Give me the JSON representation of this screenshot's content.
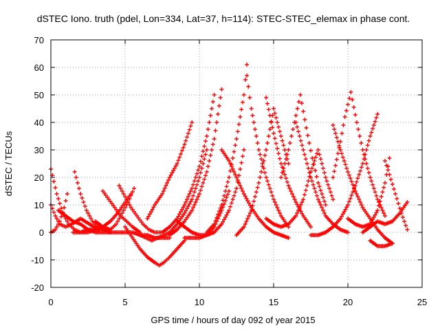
{
  "chart_data": {
    "type": "scatter",
    "title": "dSTEC Iono. truth (pdel, Lon=334, Lat=37, h=114): STEC-STEC_elemax in phase cont.",
    "xlabel": "GPS time / hours of day 092 of year 2015",
    "ylabel": "dSTEC  / TECUs",
    "xlim": [
      0,
      25
    ],
    "ylim": [
      -20,
      70
    ],
    "xticks": [
      0,
      5,
      10,
      15,
      20,
      25
    ],
    "yticks": [
      -20,
      -10,
      0,
      10,
      20,
      30,
      40,
      50,
      60,
      70
    ],
    "x_tick_labels": [
      "0",
      "5",
      "10",
      "15",
      "20",
      "25"
    ],
    "y_tick_labels": [
      "-20",
      "-10",
      "0",
      "10",
      "20",
      "30",
      "40",
      "50",
      "60",
      "70"
    ],
    "grid": true,
    "legend": "none",
    "marker": "plus",
    "color": "#ff0000",
    "series": [
      {
        "x": [
          0.0,
          0.4,
          0.8,
          1.2,
          1.6,
          2.0,
          2.4
        ],
        "y": [
          23,
          14,
          7,
          3,
          1,
          0,
          1
        ]
      },
      {
        "x": [
          0.0,
          0.3,
          0.6,
          0.9,
          1.1
        ],
        "y": [
          0,
          1,
          4,
          9,
          14
        ]
      },
      {
        "x": [
          0.0,
          0.3,
          0.6,
          1.0,
          1.4,
          2.0,
          2.6,
          3.2
        ],
        "y": [
          10,
          6,
          3,
          2,
          3,
          5,
          3,
          1
        ]
      },
      {
        "x": [
          1.6,
          2.0,
          2.4,
          2.8,
          3.2,
          3.6,
          4.0
        ],
        "y": [
          22,
          14,
          8,
          4,
          2,
          1,
          0
        ]
      },
      {
        "x": [
          0.5,
          1.0,
          1.5,
          2.0,
          2.5,
          3.0,
          3.5,
          4.0
        ],
        "y": [
          8,
          6,
          4,
          3,
          1,
          0,
          0,
          0
        ]
      },
      {
        "x": [
          1.5,
          2.0,
          2.5,
          3.0,
          3.5,
          4.0,
          4.5,
          5.0,
          5.4
        ],
        "y": [
          0,
          0,
          0,
          1,
          2,
          4,
          7,
          11,
          14
        ]
      },
      {
        "x": [
          3.5,
          3.9,
          4.3,
          4.7,
          5.1,
          5.5,
          6.0
        ],
        "y": [
          15,
          12,
          9,
          6,
          4,
          2,
          0
        ]
      },
      {
        "x": [
          3.0,
          3.5,
          4.0,
          4.4,
          4.8,
          5.2,
          5.6
        ],
        "y": [
          4,
          2,
          1,
          3,
          7,
          11,
          16
        ]
      },
      {
        "x": [
          4.6,
          5.0,
          5.4,
          5.8,
          6.2,
          6.6,
          7.0,
          7.4
        ],
        "y": [
          17,
          13,
          9,
          6,
          3,
          1,
          0,
          0
        ]
      },
      {
        "x": [
          2.5,
          3.0,
          3.5,
          4.0,
          4.5,
          5.0,
          5.5,
          6.0,
          6.5,
          7.0,
          7.5,
          8.0
        ],
        "y": [
          1,
          1,
          1,
          0,
          0,
          0,
          0,
          -1,
          -1,
          -2,
          -2,
          -2
        ]
      },
      {
        "x": [
          5.0,
          5.5,
          6.0,
          6.5,
          7.0,
          7.3,
          7.6,
          8.0,
          8.5,
          9.0
        ],
        "y": [
          2,
          -2,
          -6,
          -9,
          -11,
          -12,
          -11,
          -9,
          -6,
          -3
        ]
      },
      {
        "x": [
          6.0,
          6.4,
          6.8,
          7.2,
          7.6,
          8.0,
          8.5,
          9.0,
          9.5,
          10.0,
          10.5
        ],
        "y": [
          -1,
          -2,
          -3,
          -2,
          -1,
          0,
          3,
          7,
          12,
          20,
          30
        ]
      },
      {
        "x": [
          6.5,
          7.0,
          7.5,
          8.0,
          8.5,
          9.0,
          9.5
        ],
        "y": [
          5,
          10,
          14,
          20,
          25,
          32,
          40
        ]
      },
      {
        "x": [
          7.5,
          8.0,
          8.5,
          9.0,
          9.5,
          10.0,
          10.5,
          11.0
        ],
        "y": [
          0,
          2,
          5,
          10,
          16,
          24,
          35,
          50
        ]
      },
      {
        "x": [
          8.0,
          8.5,
          9.0,
          9.5,
          10.0,
          10.5,
          11.0,
          11.5
        ],
        "y": [
          -1,
          1,
          4,
          8,
          14,
          22,
          34,
          52
        ]
      },
      {
        "x": [
          9.0,
          9.5,
          10.0,
          10.5,
          11.0,
          11.5,
          12.0
        ],
        "y": [
          -2,
          -2,
          -2,
          -1,
          2,
          8,
          15
        ]
      },
      {
        "x": [
          8.5,
          9.0,
          9.5,
          10.0,
          10.5,
          11.0,
          11.5,
          12.0,
          12.5,
          13.0
        ],
        "y": [
          4,
          2,
          0,
          -1,
          -1,
          0,
          3,
          8,
          16,
          30
        ]
      },
      {
        "x": [
          11.5,
          12.0,
          12.5,
          13.0,
          13.5,
          14.0,
          14.5,
          15.0,
          15.5,
          16.0
        ],
        "y": [
          30,
          26,
          20,
          14,
          9,
          5,
          2,
          0,
          -1,
          -2
        ]
      },
      {
        "x": [
          10.5,
          11.0,
          11.5,
          12.0,
          12.5,
          13.0,
          13.2
        ],
        "y": [
          0,
          3,
          10,
          20,
          34,
          50,
          61
        ]
      },
      {
        "x": [
          13.2,
          13.5,
          14.0,
          14.5,
          15.0,
          15.5,
          16.0
        ],
        "y": [
          57,
          45,
          30,
          20,
          12,
          6,
          2
        ]
      },
      {
        "x": [
          12.5,
          13.0,
          13.5,
          14.0,
          14.5,
          15.0,
          15.5,
          16.0
        ],
        "y": [
          -1,
          2,
          8,
          18,
          30,
          45,
          35,
          25
        ]
      },
      {
        "x": [
          14.5,
          15.0,
          15.5,
          16.0,
          16.5,
          17.0,
          17.5
        ],
        "y": [
          49,
          36,
          25,
          17,
          11,
          6,
          2
        ]
      },
      {
        "x": [
          15.5,
          16.0,
          16.4,
          16.8,
          17.2,
          17.6,
          18.0,
          18.5
        ],
        "y": [
          20,
          30,
          40,
          50,
          38,
          27,
          18,
          10
        ]
      },
      {
        "x": [
          16.5,
          17.0,
          17.5,
          18.0,
          18.5,
          19.0,
          19.5,
          20.0
        ],
        "y": [
          40,
          30,
          20,
          12,
          6,
          3,
          1,
          0
        ]
      },
      {
        "x": [
          14.5,
          15.0,
          15.5,
          16.0,
          16.5,
          17.0,
          17.5,
          18.0,
          18.5,
          19.0
        ],
        "y": [
          5,
          3,
          2,
          3,
          6,
          12,
          22,
          30,
          20,
          12
        ]
      },
      {
        "x": [
          17.5,
          18.0,
          18.5,
          19.0,
          19.5,
          20.0,
          20.5,
          21.0,
          21.5,
          22.0
        ],
        "y": [
          -1,
          -1,
          0,
          2,
          5,
          10,
          17,
          25,
          35,
          43
        ]
      },
      {
        "x": [
          19.0,
          19.5,
          19.8,
          20.2,
          20.6,
          21.0,
          21.5,
          22.0,
          22.5
        ],
        "y": [
          20,
          33,
          42,
          51,
          40,
          30,
          20,
          12,
          6
        ]
      },
      {
        "x": [
          19.0,
          19.5,
          20.0,
          20.5,
          21.0,
          21.5,
          22.0,
          22.5,
          23.0
        ],
        "y": [
          39,
          30,
          22,
          15,
          9,
          5,
          1,
          -2,
          -4
        ]
      },
      {
        "x": [
          20.0,
          20.5,
          21.0,
          21.5,
          22.0,
          22.5,
          22.8
        ],
        "y": [
          5,
          3,
          2,
          3,
          8,
          18,
          27
        ]
      },
      {
        "x": [
          22.5,
          22.8,
          23.2,
          23.6,
          24.0
        ],
        "y": [
          26,
          21,
          14,
          7,
          1
        ]
      },
      {
        "x": [
          21.0,
          21.5,
          22.0,
          22.5,
          23.0,
          23.5,
          24.0
        ],
        "y": [
          0,
          2,
          4,
          3,
          4,
          7,
          11
        ]
      },
      {
        "x": [
          21.5,
          22.0,
          22.5,
          23.0
        ],
        "y": [
          -3,
          -5,
          -5,
          -4
        ]
      }
    ]
  }
}
